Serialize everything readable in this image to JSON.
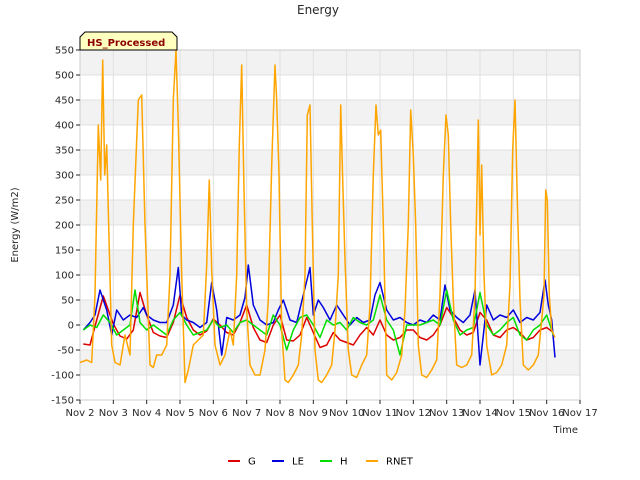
{
  "chart_data": {
    "type": "line",
    "title": "Energy",
    "xlabel": "Time",
    "ylabel": "Energy (W/m2)",
    "badge": "HS_Processed",
    "xlim": [
      2,
      17
    ],
    "ylim": [
      -150,
      550
    ],
    "x_ticks": [
      {
        "v": 2,
        "label": "Nov 2"
      },
      {
        "v": 3,
        "label": "Nov 3"
      },
      {
        "v": 4,
        "label": "Nov 4"
      },
      {
        "v": 5,
        "label": "Nov 5"
      },
      {
        "v": 6,
        "label": "Nov 6"
      },
      {
        "v": 7,
        "label": "Nov 7"
      },
      {
        "v": 8,
        "label": "Nov 8"
      },
      {
        "v": 9,
        "label": "Nov 9"
      },
      {
        "v": 10,
        "label": "Nov 10"
      },
      {
        "v": 11,
        "label": "Nov 11"
      },
      {
        "v": 12,
        "label": "Nov 12"
      },
      {
        "v": 13,
        "label": "Nov 13"
      },
      {
        "v": 14,
        "label": "Nov 14"
      },
      {
        "v": 15,
        "label": "Nov 15"
      },
      {
        "v": 16,
        "label": "Nov 16"
      },
      {
        "v": 17,
        "label": "Nov 17"
      }
    ],
    "y_ticks": [
      {
        "v": -150,
        "label": "-150"
      },
      {
        "v": -100,
        "label": "-100"
      },
      {
        "v": -50,
        "label": "-50"
      },
      {
        "v": 0,
        "label": "0"
      },
      {
        "v": 50,
        "label": "50"
      },
      {
        "v": 100,
        "label": "100"
      },
      {
        "v": 150,
        "label": "150"
      },
      {
        "v": 200,
        "label": "200"
      },
      {
        "v": 250,
        "label": "250"
      },
      {
        "v": 300,
        "label": "300"
      },
      {
        "v": 350,
        "label": "350"
      },
      {
        "v": 400,
        "label": "400"
      },
      {
        "v": 450,
        "label": "450"
      },
      {
        "v": 500,
        "label": "500"
      },
      {
        "v": 550,
        "label": "550"
      }
    ],
    "series": [
      {
        "name": "G",
        "color": "#dd0000",
        "x": [
          2.1,
          2.3,
          2.5,
          2.7,
          2.85,
          3.0,
          3.2,
          3.4,
          3.6,
          3.8,
          4.0,
          4.2,
          4.4,
          4.6,
          4.8,
          5.0,
          5.2,
          5.4,
          5.6,
          5.8,
          6.0,
          6.2,
          6.4,
          6.6,
          6.8,
          7.0,
          7.2,
          7.4,
          7.6,
          7.8,
          8.0,
          8.2,
          8.4,
          8.6,
          8.8,
          9.0,
          9.2,
          9.4,
          9.6,
          9.8,
          10.0,
          10.2,
          10.4,
          10.6,
          10.8,
          11.0,
          11.2,
          11.4,
          11.6,
          11.8,
          12.0,
          12.2,
          12.4,
          12.6,
          12.8,
          13.0,
          13.2,
          13.4,
          13.6,
          13.8,
          14.0,
          14.2,
          14.4,
          14.6,
          14.8,
          15.0,
          15.2,
          15.4,
          15.6,
          15.8,
          16.0,
          16.2
        ],
        "y": [
          -38,
          -40,
          10,
          58,
          30,
          2,
          -22,
          -28,
          -10,
          65,
          20,
          -15,
          -22,
          -25,
          5,
          60,
          15,
          -10,
          -20,
          -12,
          12,
          0,
          -15,
          -20,
          5,
          40,
          -5,
          -30,
          -35,
          0,
          20,
          -30,
          -32,
          -20,
          15,
          -15,
          -45,
          -40,
          -15,
          -30,
          -35,
          -40,
          -20,
          -5,
          -20,
          10,
          -20,
          -30,
          -25,
          -10,
          -10,
          -25,
          -30,
          -20,
          0,
          35,
          15,
          -10,
          -20,
          -15,
          25,
          10,
          -20,
          -25,
          -10,
          -5,
          -15,
          -30,
          -25,
          -10,
          -5,
          -15
        ]
      },
      {
        "name": "LE",
        "color": "#0000dd",
        "x": [
          2.1,
          2.3,
          2.45,
          2.6,
          2.8,
          2.95,
          3.1,
          3.3,
          3.5,
          3.7,
          3.9,
          4.0,
          4.2,
          4.4,
          4.6,
          4.8,
          4.95,
          5.05,
          5.2,
          5.4,
          5.6,
          5.8,
          5.95,
          6.1,
          6.25,
          6.4,
          6.6,
          6.8,
          6.95,
          7.05,
          7.2,
          7.4,
          7.6,
          7.8,
          7.95,
          8.1,
          8.3,
          8.5,
          8.7,
          8.9,
          9.0,
          9.15,
          9.3,
          9.5,
          9.7,
          9.9,
          10.1,
          10.3,
          10.5,
          10.7,
          10.85,
          11.0,
          11.2,
          11.4,
          11.6,
          11.8,
          12.0,
          12.2,
          12.4,
          12.6,
          12.8,
          12.95,
          13.1,
          13.3,
          13.5,
          13.7,
          13.85,
          14.0,
          14.2,
          14.4,
          14.6,
          14.8,
          15.0,
          15.2,
          15.4,
          15.6,
          15.8,
          15.95,
          16.05,
          16.15,
          16.25
        ],
        "y": [
          -10,
          5,
          20,
          70,
          30,
          -20,
          30,
          10,
          20,
          15,
          35,
          20,
          10,
          5,
          5,
          40,
          115,
          20,
          10,
          5,
          -5,
          5,
          85,
          30,
          -60,
          15,
          10,
          20,
          55,
          120,
          40,
          10,
          0,
          5,
          30,
          50,
          10,
          5,
          60,
          115,
          20,
          50,
          35,
          10,
          40,
          20,
          0,
          15,
          5,
          10,
          60,
          85,
          30,
          10,
          15,
          5,
          0,
          10,
          5,
          20,
          10,
          80,
          30,
          15,
          5,
          20,
          70,
          -80,
          40,
          10,
          20,
          15,
          30,
          5,
          15,
          10,
          25,
          90,
          40,
          10,
          -65
        ]
      },
      {
        "name": "H",
        "color": "#00dd00",
        "x": [
          2.1,
          2.3,
          2.5,
          2.7,
          2.9,
          3.1,
          3.3,
          3.5,
          3.65,
          3.8,
          4.0,
          4.2,
          4.4,
          4.6,
          4.8,
          5.0,
          5.2,
          5.4,
          5.6,
          5.8,
          6.0,
          6.2,
          6.4,
          6.6,
          6.8,
          7.0,
          7.2,
          7.4,
          7.6,
          7.8,
          8.0,
          8.2,
          8.4,
          8.6,
          8.8,
          9.0,
          9.2,
          9.4,
          9.6,
          9.8,
          10.0,
          10.2,
          10.4,
          10.6,
          10.8,
          11.0,
          11.2,
          11.4,
          11.6,
          11.8,
          12.0,
          12.2,
          12.4,
          12.6,
          12.8,
          13.0,
          13.2,
          13.4,
          13.6,
          13.8,
          14.0,
          14.2,
          14.4,
          14.6,
          14.8,
          15.0,
          15.2,
          15.4,
          15.6,
          15.8,
          16.0,
          16.2
        ],
        "y": [
          -10,
          0,
          -5,
          20,
          5,
          -20,
          -10,
          0,
          70,
          5,
          -10,
          0,
          -10,
          -20,
          10,
          25,
          0,
          -20,
          -15,
          -10,
          10,
          -5,
          0,
          -15,
          5,
          10,
          0,
          -10,
          -20,
          20,
          0,
          -50,
          -10,
          15,
          20,
          0,
          -25,
          10,
          0,
          5,
          -10,
          15,
          5,
          0,
          10,
          60,
          10,
          -10,
          -60,
          0,
          0,
          0,
          5,
          10,
          0,
          70,
          10,
          -20,
          -10,
          -5,
          65,
          0,
          -20,
          -10,
          5,
          15,
          -20,
          -30,
          -10,
          0,
          20,
          -20
        ]
      },
      {
        "name": "RNET",
        "color": "#ffa500",
        "x": [
          2.0,
          2.2,
          2.35,
          2.45,
          2.55,
          2.62,
          2.68,
          2.74,
          2.8,
          2.88,
          2.95,
          3.05,
          3.2,
          3.35,
          3.5,
          3.6,
          3.75,
          3.85,
          3.95,
          4.1,
          4.2,
          4.3,
          4.45,
          4.6,
          4.7,
          4.8,
          4.88,
          4.95,
          5.05,
          5.15,
          5.25,
          5.4,
          5.55,
          5.7,
          5.8,
          5.88,
          5.95,
          6.05,
          6.2,
          6.35,
          6.5,
          6.6,
          6.7,
          6.78,
          6.85,
          6.92,
          7.0,
          7.1,
          7.25,
          7.4,
          7.55,
          7.65,
          7.75,
          7.85,
          7.9,
          7.97,
          8.05,
          8.15,
          8.25,
          8.4,
          8.55,
          8.65,
          8.75,
          8.82,
          8.9,
          8.97,
          9.05,
          9.15,
          9.25,
          9.4,
          9.55,
          9.65,
          9.75,
          9.82,
          9.88,
          9.95,
          10.05,
          10.15,
          10.3,
          10.45,
          10.6,
          10.7,
          10.8,
          10.88,
          10.95,
          11.02,
          11.1,
          11.2,
          11.35,
          11.5,
          11.65,
          11.75,
          11.85,
          11.92,
          12.0,
          12.07,
          12.15,
          12.25,
          12.4,
          12.55,
          12.7,
          12.8,
          12.9,
          12.98,
          13.05,
          13.12,
          13.2,
          13.3,
          13.45,
          13.6,
          13.75,
          13.85,
          13.95,
          14.0,
          14.05,
          14.12,
          14.2,
          14.35,
          14.5,
          14.65,
          14.8,
          14.9,
          14.98,
          15.05,
          15.12,
          15.2,
          15.3,
          15.45,
          15.6,
          15.75,
          15.85,
          15.92,
          15.97,
          16.02,
          16.08,
          16.15,
          16.25
        ],
        "y": [
          -75,
          -70,
          -75,
          60,
          400,
          290,
          530,
          300,
          360,
          150,
          -40,
          -75,
          -80,
          -20,
          -60,
          200,
          450,
          460,
          200,
          -80,
          -85,
          -60,
          -60,
          -40,
          100,
          450,
          550,
          400,
          100,
          -115,
          -90,
          -40,
          -30,
          -20,
          120,
          290,
          110,
          -40,
          -80,
          -60,
          -10,
          -40,
          100,
          360,
          520,
          270,
          30,
          -80,
          -100,
          -100,
          -50,
          50,
          320,
          520,
          450,
          300,
          -10,
          -110,
          -115,
          -100,
          -80,
          -20,
          100,
          420,
          440,
          200,
          -50,
          -110,
          -115,
          -100,
          -80,
          -10,
          100,
          440,
          290,
          130,
          -50,
          -100,
          -105,
          -80,
          -60,
          40,
          300,
          440,
          380,
          390,
          200,
          -100,
          -110,
          -95,
          -60,
          30,
          200,
          430,
          340,
          200,
          -40,
          -100,
          -105,
          -90,
          -70,
          60,
          300,
          420,
          380,
          200,
          50,
          -80,
          -85,
          -80,
          -60,
          60,
          410,
          180,
          320,
          100,
          -40,
          -100,
          -95,
          -80,
          -40,
          80,
          350,
          450,
          250,
          50,
          -80,
          -90,
          -80,
          -60,
          10,
          60,
          270,
          250,
          60,
          -10,
          -25
        ]
      }
    ]
  }
}
